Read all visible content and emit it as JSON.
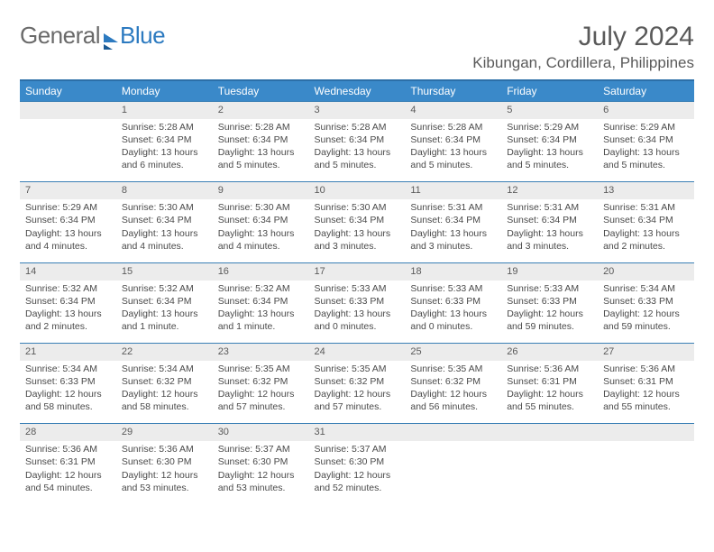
{
  "brand": {
    "part1": "General",
    "part2": "Blue"
  },
  "title": "July 2024",
  "location": "Kibungan, Cordillera, Philippines",
  "colors": {
    "header_bg": "#3a89c9",
    "header_border": "#2c6fa8",
    "daynum_bg": "#ececec",
    "row_divider": "#3a7fb5",
    "text": "#4a4a4a",
    "brand_gray": "#6a6a6a",
    "brand_blue": "#2c7ac0"
  },
  "weekdays": [
    "Sunday",
    "Monday",
    "Tuesday",
    "Wednesday",
    "Thursday",
    "Friday",
    "Saturday"
  ],
  "weeks": [
    {
      "nums": [
        "",
        "1",
        "2",
        "3",
        "4",
        "5",
        "6"
      ],
      "details": [
        "",
        "Sunrise: 5:28 AM\nSunset: 6:34 PM\nDaylight: 13 hours and 6 minutes.",
        "Sunrise: 5:28 AM\nSunset: 6:34 PM\nDaylight: 13 hours and 5 minutes.",
        "Sunrise: 5:28 AM\nSunset: 6:34 PM\nDaylight: 13 hours and 5 minutes.",
        "Sunrise: 5:28 AM\nSunset: 6:34 PM\nDaylight: 13 hours and 5 minutes.",
        "Sunrise: 5:29 AM\nSunset: 6:34 PM\nDaylight: 13 hours and 5 minutes.",
        "Sunrise: 5:29 AM\nSunset: 6:34 PM\nDaylight: 13 hours and 5 minutes."
      ]
    },
    {
      "nums": [
        "7",
        "8",
        "9",
        "10",
        "11",
        "12",
        "13"
      ],
      "details": [
        "Sunrise: 5:29 AM\nSunset: 6:34 PM\nDaylight: 13 hours and 4 minutes.",
        "Sunrise: 5:30 AM\nSunset: 6:34 PM\nDaylight: 13 hours and 4 minutes.",
        "Sunrise: 5:30 AM\nSunset: 6:34 PM\nDaylight: 13 hours and 4 minutes.",
        "Sunrise: 5:30 AM\nSunset: 6:34 PM\nDaylight: 13 hours and 3 minutes.",
        "Sunrise: 5:31 AM\nSunset: 6:34 PM\nDaylight: 13 hours and 3 minutes.",
        "Sunrise: 5:31 AM\nSunset: 6:34 PM\nDaylight: 13 hours and 3 minutes.",
        "Sunrise: 5:31 AM\nSunset: 6:34 PM\nDaylight: 13 hours and 2 minutes."
      ]
    },
    {
      "nums": [
        "14",
        "15",
        "16",
        "17",
        "18",
        "19",
        "20"
      ],
      "details": [
        "Sunrise: 5:32 AM\nSunset: 6:34 PM\nDaylight: 13 hours and 2 minutes.",
        "Sunrise: 5:32 AM\nSunset: 6:34 PM\nDaylight: 13 hours and 1 minute.",
        "Sunrise: 5:32 AM\nSunset: 6:34 PM\nDaylight: 13 hours and 1 minute.",
        "Sunrise: 5:33 AM\nSunset: 6:33 PM\nDaylight: 13 hours and 0 minutes.",
        "Sunrise: 5:33 AM\nSunset: 6:33 PM\nDaylight: 13 hours and 0 minutes.",
        "Sunrise: 5:33 AM\nSunset: 6:33 PM\nDaylight: 12 hours and 59 minutes.",
        "Sunrise: 5:34 AM\nSunset: 6:33 PM\nDaylight: 12 hours and 59 minutes."
      ]
    },
    {
      "nums": [
        "21",
        "22",
        "23",
        "24",
        "25",
        "26",
        "27"
      ],
      "details": [
        "Sunrise: 5:34 AM\nSunset: 6:33 PM\nDaylight: 12 hours and 58 minutes.",
        "Sunrise: 5:34 AM\nSunset: 6:32 PM\nDaylight: 12 hours and 58 minutes.",
        "Sunrise: 5:35 AM\nSunset: 6:32 PM\nDaylight: 12 hours and 57 minutes.",
        "Sunrise: 5:35 AM\nSunset: 6:32 PM\nDaylight: 12 hours and 57 minutes.",
        "Sunrise: 5:35 AM\nSunset: 6:32 PM\nDaylight: 12 hours and 56 minutes.",
        "Sunrise: 5:36 AM\nSunset: 6:31 PM\nDaylight: 12 hours and 55 minutes.",
        "Sunrise: 5:36 AM\nSunset: 6:31 PM\nDaylight: 12 hours and 55 minutes."
      ]
    },
    {
      "nums": [
        "28",
        "29",
        "30",
        "31",
        "",
        "",
        ""
      ],
      "details": [
        "Sunrise: 5:36 AM\nSunset: 6:31 PM\nDaylight: 12 hours and 54 minutes.",
        "Sunrise: 5:36 AM\nSunset: 6:30 PM\nDaylight: 12 hours and 53 minutes.",
        "Sunrise: 5:37 AM\nSunset: 6:30 PM\nDaylight: 12 hours and 53 minutes.",
        "Sunrise: 5:37 AM\nSunset: 6:30 PM\nDaylight: 12 hours and 52 minutes.",
        "",
        "",
        ""
      ]
    }
  ]
}
